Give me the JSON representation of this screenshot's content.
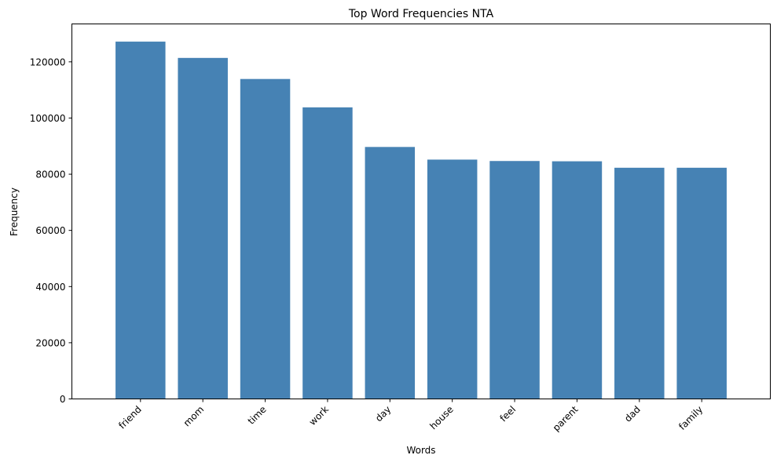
{
  "chart_data": {
    "type": "bar",
    "title": "Top Word Frequencies NTA",
    "xlabel": "Words",
    "ylabel": "Frequency",
    "categories": [
      "friend",
      "mom",
      "time",
      "work",
      "day",
      "house",
      "feel",
      "parent",
      "dad",
      "family"
    ],
    "values": [
      127200,
      121400,
      113900,
      103800,
      89700,
      85200,
      84700,
      84600,
      82300,
      82300
    ],
    "ylim": [
      0,
      133500
    ],
    "yticks": [
      0,
      20000,
      40000,
      60000,
      80000,
      100000,
      120000
    ],
    "ytick_labels": [
      "0",
      "20000",
      "40000",
      "60000",
      "80000",
      "100000",
      "120000"
    ],
    "bar_color": "#4682b4",
    "grid": false,
    "legend": "none"
  }
}
